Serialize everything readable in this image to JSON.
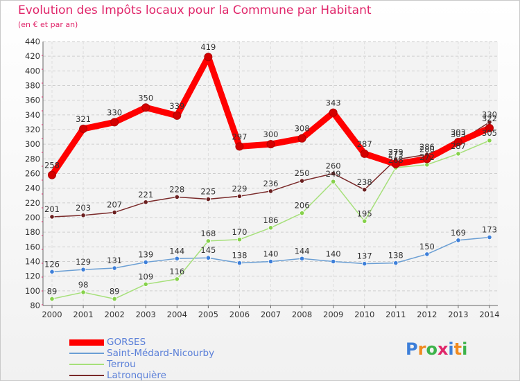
{
  "header": {
    "title": "Evolution des Impôts locaux pour la Commune par Habitant",
    "subtitle": "(en € et par an)"
  },
  "logo": {
    "text": "Proxiti",
    "letter_colors": [
      "#3d7fd9",
      "#f08a1f",
      "#3db34a",
      "#e0266a",
      "#3d7fd9",
      "#f08a1f",
      "#3db34a"
    ]
  },
  "chart_data": {
    "type": "line",
    "x": [
      "2000",
      "2001",
      "2002",
      "2003",
      "2004",
      "2005",
      "2006",
      "2007",
      "2008",
      "2009",
      "2010",
      "2011",
      "2012",
      "2013",
      "2014"
    ],
    "ylim": [
      80,
      440
    ],
    "yticks": [
      80,
      100,
      120,
      140,
      160,
      180,
      200,
      220,
      240,
      260,
      280,
      300,
      320,
      340,
      360,
      380,
      400,
      420,
      440
    ],
    "grid": true,
    "legend_position": "bottom-left",
    "series": [
      {
        "name": "GORSES",
        "color": "#ff0000",
        "point_color": "#d40000",
        "emphasis": "thick",
        "values": [
          258,
          321,
          330,
          350,
          339,
          419,
          297,
          300,
          308,
          343,
          287,
          273,
          280,
          303,
          322
        ],
        "labels": [
          "258",
          "321",
          "330",
          "350",
          "339",
          "419",
          "297",
          "300",
          "308",
          "343",
          "287",
          "273",
          "280",
          "303",
          "322"
        ]
      },
      {
        "name": "Saint-Médard-Nicourby",
        "color": "#6b9fd4",
        "point_color": "#3d7fd9",
        "emphasis": "thin",
        "values": [
          126,
          129,
          131,
          139,
          144,
          145,
          138,
          140,
          144,
          140,
          137,
          138,
          150,
          169,
          173
        ],
        "labels": [
          "126",
          "129",
          "131",
          "139",
          "144",
          "145",
          "138",
          "140",
          "144",
          "140",
          "137",
          "138",
          "150",
          "169",
          "173"
        ]
      },
      {
        "name": "Terrou",
        "color": "#a6e07a",
        "point_color": "#86d14a",
        "emphasis": "thin",
        "values": [
          89,
          98,
          89,
          109,
          116,
          168,
          170,
          186,
          206,
          249,
          195,
          268,
          272,
          287,
          305
        ],
        "labels": [
          "89",
          "98",
          "89",
          "109",
          "116",
          "168",
          "170",
          "186",
          "206",
          "249",
          "195",
          "268",
          "272",
          "287",
          "305"
        ]
      },
      {
        "name": "Latronquière",
        "color": "#7a2a2a",
        "point_color": "#6a1f1f",
        "emphasis": "thin",
        "values": [
          201,
          203,
          207,
          221,
          228,
          225,
          229,
          236,
          250,
          260,
          238,
          279,
          286,
          303,
          330
        ],
        "labels": [
          "201",
          "203",
          "207",
          "221",
          "228",
          "225",
          "229",
          "236",
          "250",
          "260",
          "238",
          "279",
          "286",
          "303",
          "330"
        ]
      }
    ]
  }
}
